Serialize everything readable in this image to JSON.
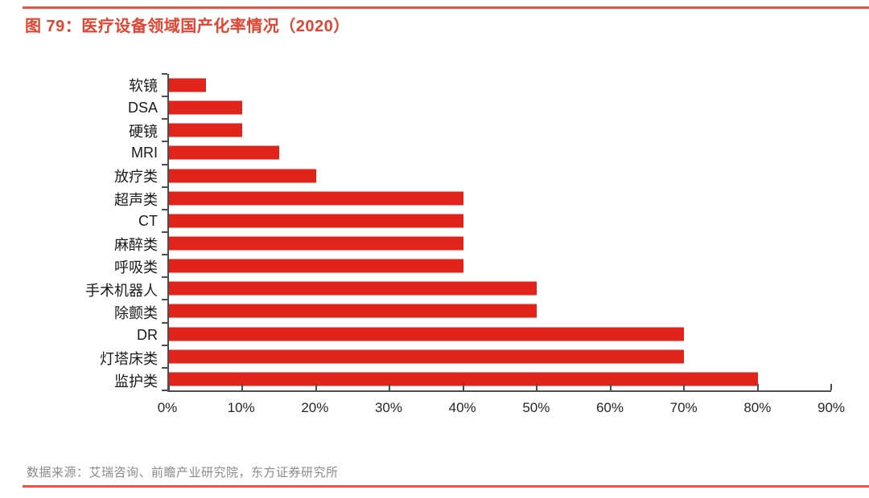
{
  "figure": {
    "title": "图 79：医疗设备领域国产化率情况（2020）",
    "source_note": "数据来源：艾瑞咨询、前瞻产业研究院，东方证券研究所"
  },
  "colors": {
    "bar": "#e0231b",
    "title_accent": "#e5432f",
    "rule_line": "#ec5347",
    "axis": "#4d4d4d",
    "category_text": "#1a1a1a",
    "tick_text": "#262626",
    "source_text": "#8a8a8a"
  },
  "chart_data": {
    "type": "bar",
    "orientation": "horizontal",
    "title": "图 79：医疗设备领域国产化率情况（2020）",
    "categories": [
      "软镜",
      "DSA",
      "硬镜",
      "MRI",
      "放疗类",
      "超声类",
      "CT",
      "麻醉类",
      "呼吸类",
      "手术机器人",
      "除颤类",
      "DR",
      "灯塔床类",
      "监护类"
    ],
    "values": [
      5,
      10,
      10,
      15,
      20,
      40,
      40,
      40,
      40,
      50,
      50,
      70,
      70,
      80
    ],
    "unit": "%",
    "xlabel": "",
    "ylabel": "",
    "xlim": [
      0,
      90
    ],
    "x_ticks": [
      0,
      10,
      20,
      30,
      40,
      50,
      60,
      70,
      80,
      90
    ],
    "x_tick_labels": [
      "0%",
      "10%",
      "20%",
      "30%",
      "40%",
      "50%",
      "60%",
      "70%",
      "80%",
      "90%"
    ],
    "grid": false,
    "legend_position": "none"
  }
}
